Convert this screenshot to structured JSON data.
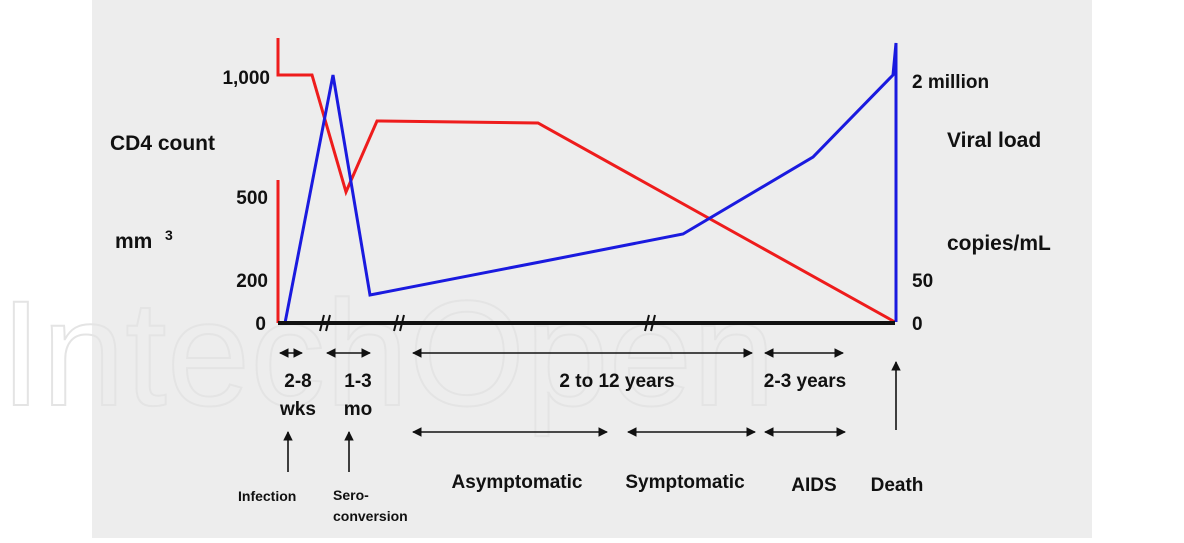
{
  "watermark": "IntechOpen",
  "left_axis": {
    "title": "CD4 count",
    "unit": "mm",
    "unit_sup": "3",
    "ticks": [
      "1,000",
      "500",
      "200",
      "0"
    ]
  },
  "right_axis": {
    "title": "Viral load",
    "unit": "copies/mL",
    "ticks": [
      "2 million",
      "50",
      "0"
    ]
  },
  "durations": [
    {
      "lines": [
        "2-8",
        "wks"
      ]
    },
    {
      "lines": [
        "1-3",
        "mo"
      ]
    },
    {
      "lines": [
        "2 to 12 years"
      ]
    },
    {
      "lines": [
        "2-3 years"
      ]
    }
  ],
  "events": [
    {
      "lines": [
        "Infection"
      ]
    },
    {
      "lines": [
        "Sero-",
        "conversion"
      ]
    }
  ],
  "stages": [
    "Asymptomatic",
    "Symptomatic",
    "AIDS",
    "Death"
  ]
}
